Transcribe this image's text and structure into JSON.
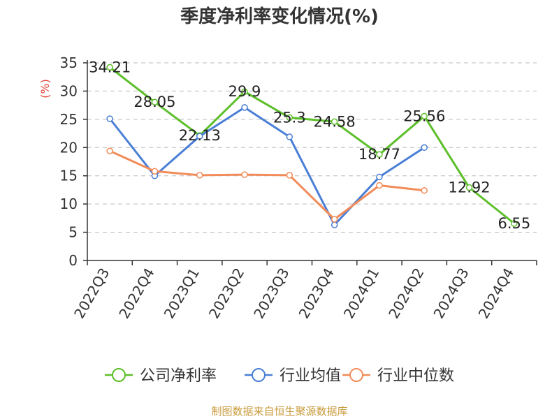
{
  "chart_data": {
    "type": "line",
    "title": "季度净利率变化情况(%)",
    "ylabel": "(%)",
    "ylim": [
      0,
      35
    ],
    "yticks": [
      0,
      5,
      10,
      15,
      20,
      25,
      30,
      35
    ],
    "grid": true,
    "legend_position": "bottom",
    "categories": [
      "2022Q3",
      "2022Q4",
      "2023Q1",
      "2023Q2",
      "2023Q3",
      "2023Q4",
      "2024Q1",
      "2024Q2",
      "2024Q3",
      "2024Q4"
    ],
    "series": [
      {
        "name": "公司净利率",
        "color": "#5cbf2a",
        "values": [
          34.21,
          28.05,
          22.13,
          29.9,
          25.3,
          24.58,
          18.77,
          25.56,
          12.92,
          6.55
        ],
        "labels": [
          "34.21",
          "28.05",
          "22.13",
          "29.9",
          "25.3",
          "24.58",
          "18.77",
          "25.56",
          "12.92",
          "6.55"
        ]
      },
      {
        "name": "行业均值",
        "color": "#4a7fd6",
        "values": [
          25.1,
          15.0,
          22.0,
          27.1,
          21.9,
          6.3,
          14.8,
          20.0,
          null,
          null
        ]
      },
      {
        "name": "行业中位数",
        "color": "#f28c5a",
        "values": [
          19.4,
          15.8,
          15.1,
          15.2,
          15.1,
          7.3,
          13.3,
          12.4,
          null,
          null
        ]
      }
    ],
    "source": "制图数据来自恒生聚源数据库"
  }
}
